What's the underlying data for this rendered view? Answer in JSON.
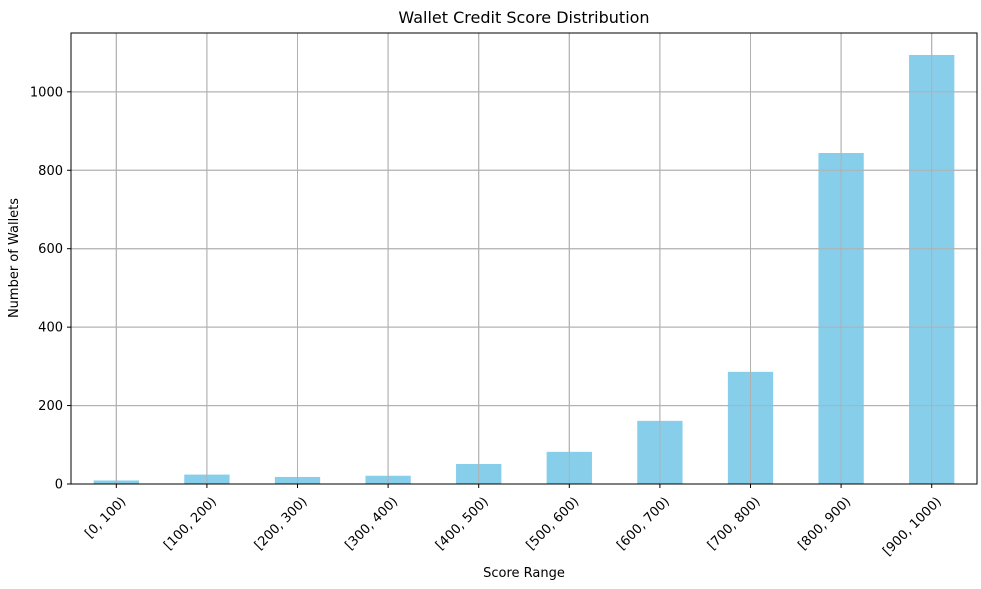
{
  "chart_data": {
    "type": "bar",
    "title": "Wallet Credit Score Distribution",
    "xlabel": "Score Range",
    "ylabel": "Number of Wallets",
    "categories": [
      "[0, 100)",
      "[100, 200)",
      "[200, 300)",
      "[300, 400)",
      "[400, 500)",
      "[500, 600)",
      "[600, 700)",
      "[700, 800)",
      "[800, 900)",
      "[900, 1000)"
    ],
    "values": [
      9,
      24,
      18,
      21,
      51,
      82,
      161,
      286,
      844,
      1094
    ],
    "ylim": [
      0,
      1150
    ],
    "yticks": [
      0,
      200,
      400,
      600,
      800,
      1000
    ],
    "grid": true,
    "bar_color": "#87ceeb",
    "x_tick_rotation": 45
  }
}
